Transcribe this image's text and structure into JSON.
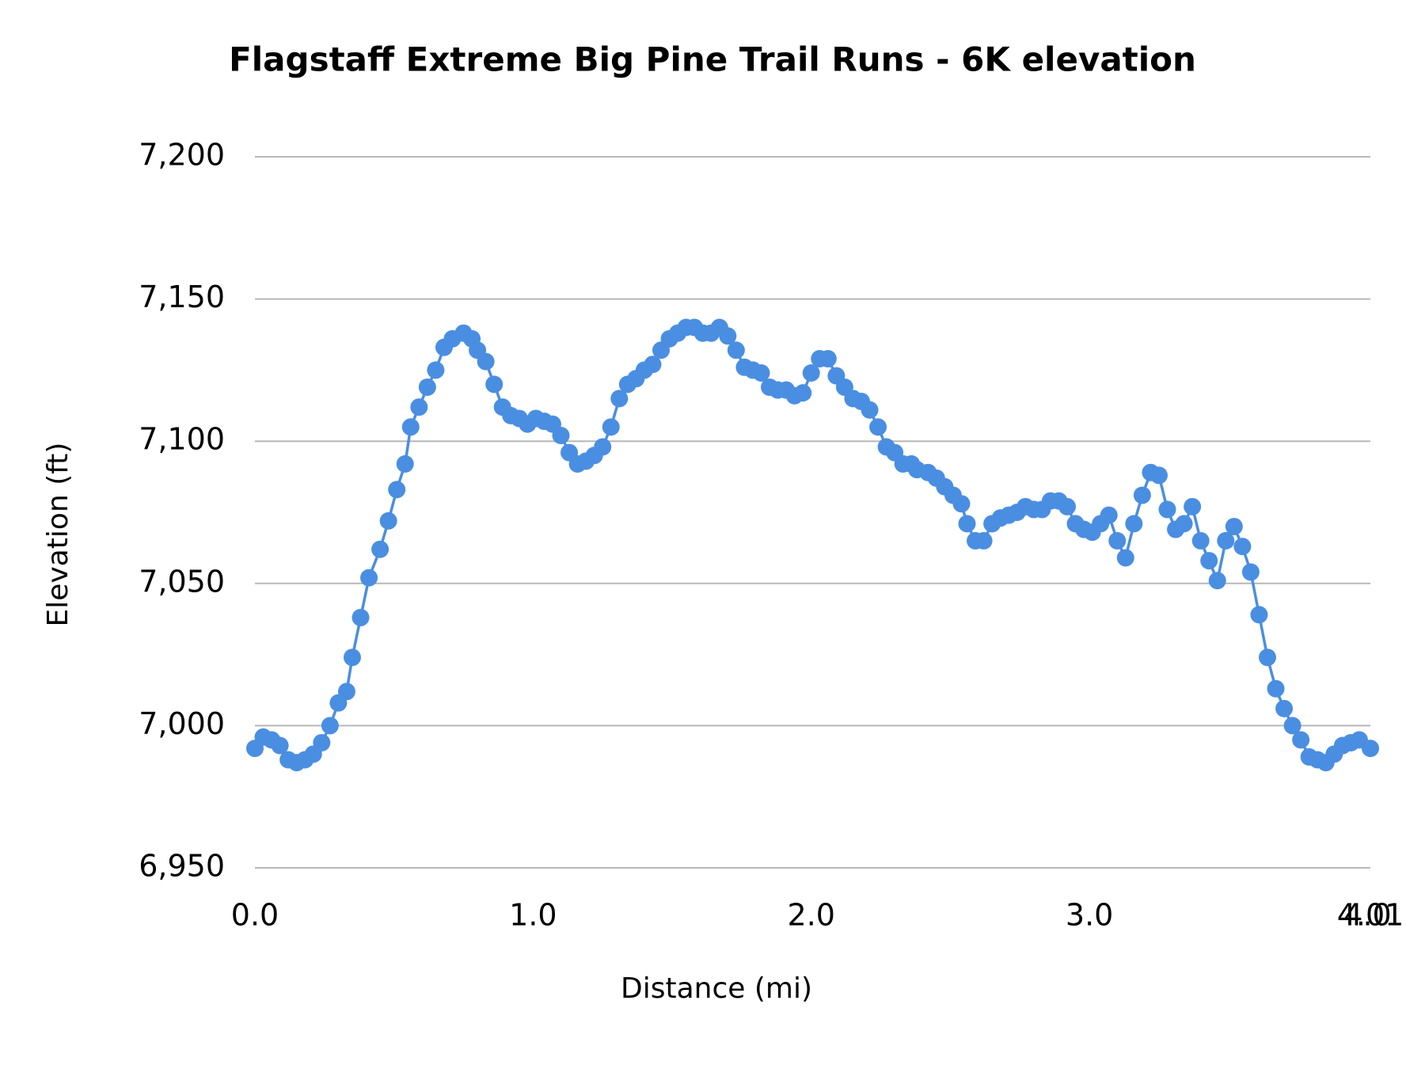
{
  "chart_data": {
    "type": "line",
    "title": "Flagstaff Extreme Big Pine Trail Runs - 6K elevation",
    "x_label": "Distance (mi)",
    "y_label": "Elevation (ft)",
    "x": [
      0.0,
      0.03,
      0.06,
      0.09,
      0.12,
      0.15,
      0.18,
      0.21,
      0.24,
      0.27,
      0.3,
      0.33,
      0.35,
      0.38,
      0.41,
      0.45,
      0.48,
      0.51,
      0.54,
      0.56,
      0.59,
      0.62,
      0.65,
      0.68,
      0.71,
      0.75,
      0.78,
      0.8,
      0.83,
      0.86,
      0.89,
      0.92,
      0.95,
      0.98,
      1.01,
      1.04,
      1.07,
      1.1,
      1.13,
      1.16,
      1.19,
      1.22,
      1.25,
      1.28,
      1.31,
      1.34,
      1.37,
      1.4,
      1.43,
      1.46,
      1.49,
      1.52,
      1.55,
      1.58,
      1.61,
      1.64,
      1.67,
      1.7,
      1.73,
      1.76,
      1.79,
      1.82,
      1.85,
      1.88,
      1.91,
      1.94,
      1.97,
      2.0,
      2.03,
      2.06,
      2.09,
      2.12,
      2.15,
      2.18,
      2.21,
      2.24,
      2.27,
      2.3,
      2.33,
      2.36,
      2.38,
      2.42,
      2.45,
      2.48,
      2.51,
      2.54,
      2.56,
      2.59,
      2.62,
      2.65,
      2.68,
      2.71,
      2.74,
      2.77,
      2.8,
      2.83,
      2.86,
      2.89,
      2.92,
      2.95,
      2.98,
      3.01,
      3.04,
      3.07,
      3.1,
      3.13,
      3.16,
      3.19,
      3.22,
      3.25,
      3.28,
      3.31,
      3.34,
      3.37,
      3.4,
      3.43,
      3.46,
      3.49,
      3.52,
      3.55,
      3.58,
      3.61,
      3.64,
      3.67,
      3.7,
      3.73,
      3.76,
      3.79,
      3.82,
      3.85,
      3.88,
      3.91,
      3.94,
      3.97,
      4.01
    ],
    "series": [
      {
        "name": "Elevation (ft)",
        "color": "#4a8ee2",
        "values": [
          6992,
          6996,
          6995,
          6993,
          6988,
          6987,
          6988,
          6990,
          6994,
          7000,
          7008,
          7012,
          7024,
          7038,
          7052,
          7062,
          7072,
          7083,
          7092,
          7105,
          7112,
          7119,
          7125,
          7133,
          7136,
          7138,
          7136,
          7132,
          7128,
          7120,
          7112,
          7109,
          7108,
          7106,
          7108,
          7107,
          7106,
          7102,
          7096,
          7092,
          7093,
          7095,
          7098,
          7105,
          7115,
          7120,
          7122,
          7125,
          7127,
          7132,
          7136,
          7138,
          7140,
          7140,
          7138,
          7138,
          7140,
          7137,
          7132,
          7126,
          7125,
          7124,
          7119,
          7118,
          7118,
          7116,
          7117,
          7124,
          7129,
          7129,
          7123,
          7119,
          7115,
          7114,
          7111,
          7105,
          7098,
          7096,
          7092,
          7092,
          7090,
          7089,
          7087,
          7084,
          7081,
          7078,
          7071,
          7065,
          7065,
          7071,
          7073,
          7074,
          7075,
          7077,
          7076,
          7076,
          7079,
          7079,
          7077,
          7071,
          7069,
          7068,
          7071,
          7074,
          7065,
          7059,
          7071,
          7081,
          7089,
          7088,
          7076,
          7069,
          7071,
          7077,
          7065,
          7058,
          7051,
          7065,
          7070,
          7063,
          7054,
          7039,
          7024,
          7013,
          7006,
          7000,
          6995,
          6989,
          6988,
          6987,
          6990,
          6993,
          6994,
          6995,
          6992
        ]
      }
    ],
    "xlim": [
      0,
      4.01
    ],
    "xticks": [
      {
        "value": 0,
        "label": "0.0"
      },
      {
        "value": 1,
        "label": "1.0"
      },
      {
        "value": 2,
        "label": "2.0"
      },
      {
        "value": 3,
        "label": "3.0"
      },
      {
        "value": 4,
        "label": "4.0"
      },
      4.01
    ],
    "ylim": [
      6950,
      7200
    ],
    "yticks": [
      {
        "value": 6950,
        "label": "6,950"
      },
      {
        "value": 7000,
        "label": "7,000"
      },
      {
        "value": 7050,
        "label": "7,050"
      },
      {
        "value": 7100,
        "label": "7,100"
      },
      {
        "value": 7150,
        "label": "7,150"
      },
      {
        "value": 7200,
        "label": "7,200"
      }
    ],
    "grid": true
  }
}
